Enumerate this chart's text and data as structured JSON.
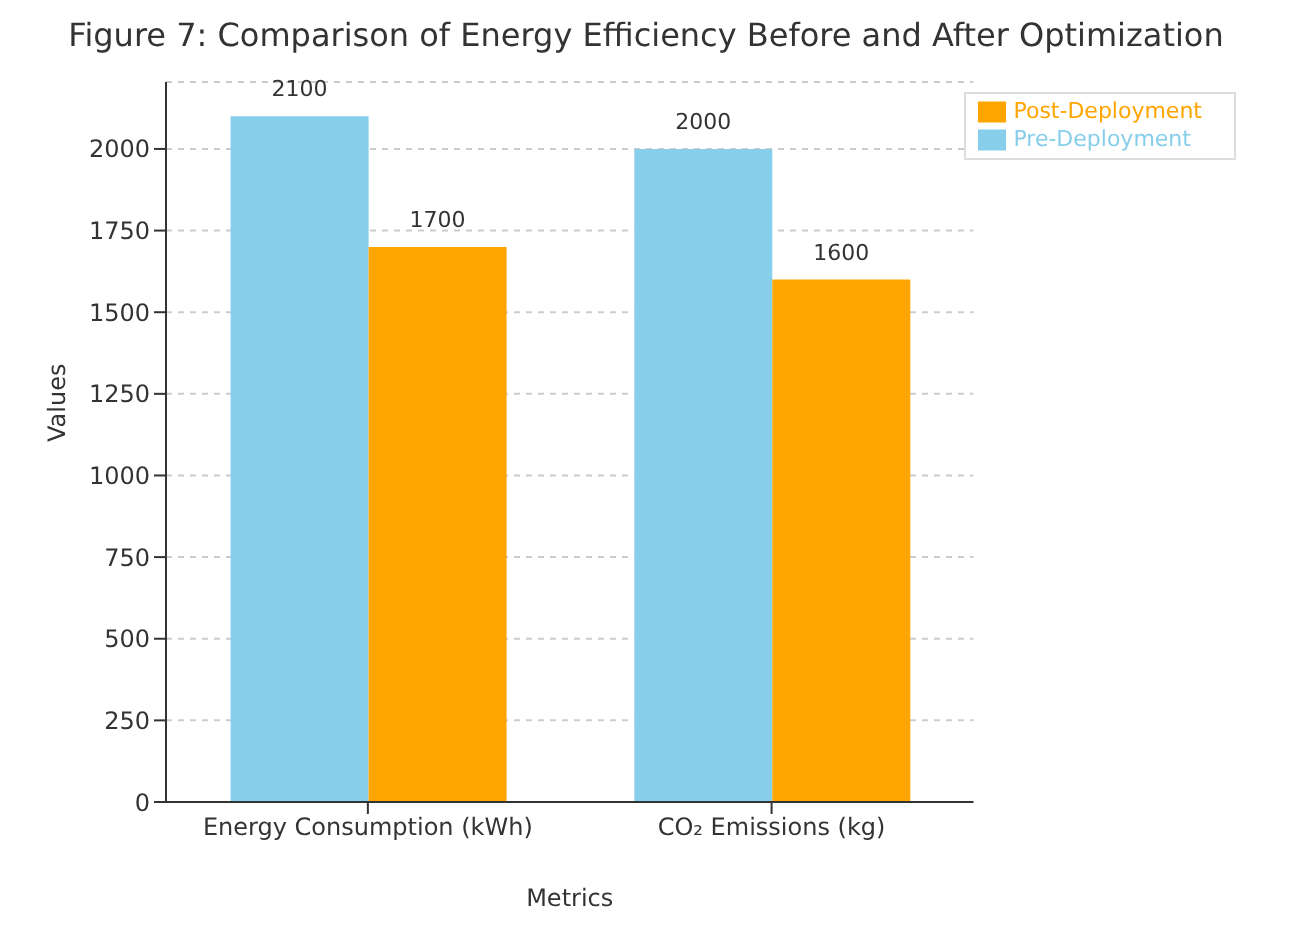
{
  "chart_data": {
    "type": "bar",
    "title": "Figure 7: Comparison of Energy Efficiency Before and After Optimization",
    "xlabel": "Metrics",
    "ylabel": "Values",
    "categories": [
      "Energy Consumption (kWh)",
      "CO₂ Emissions (kg)"
    ],
    "series": [
      {
        "name": "Pre-Deployment",
        "color": "#87ceeb",
        "values": [
          2100,
          2000
        ]
      },
      {
        "name": "Post-Deployment",
        "color": "#ffa500",
        "values": [
          1700,
          1600
        ]
      }
    ],
    "ylim": [
      0,
      2205
    ],
    "yticks": [
      0,
      250,
      500,
      750,
      1000,
      1250,
      1500,
      1750,
      2000
    ],
    "grid": "y",
    "legend": "top right",
    "data_labels": true
  }
}
